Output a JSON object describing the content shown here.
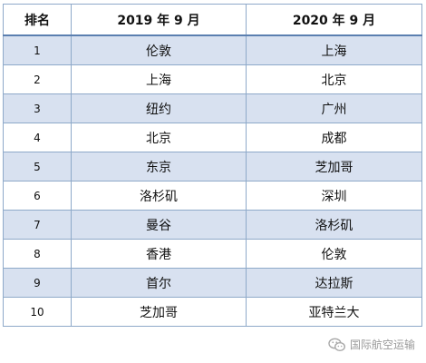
{
  "table": {
    "headers": [
      "排名",
      "2019 年 9 月",
      "2020 年 9 月"
    ],
    "rows": [
      {
        "rank": "1",
        "y2019": "伦敦",
        "y2020": "上海"
      },
      {
        "rank": "2",
        "y2019": "上海",
        "y2020": "北京"
      },
      {
        "rank": "3",
        "y2019": "纽约",
        "y2020": "广州"
      },
      {
        "rank": "4",
        "y2019": "北京",
        "y2020": "成都"
      },
      {
        "rank": "5",
        "y2019": "东京",
        "y2020": "芝加哥"
      },
      {
        "rank": "6",
        "y2019": "洛杉矶",
        "y2020": "深圳"
      },
      {
        "rank": "7",
        "y2019": "曼谷",
        "y2020": "洛杉矶"
      },
      {
        "rank": "8",
        "y2019": "香港",
        "y2020": "伦敦"
      },
      {
        "rank": "9",
        "y2019": "首尔",
        "y2020": "达拉斯"
      },
      {
        "rank": "10",
        "y2019": "芝加哥",
        "y2020": "亚特兰大"
      }
    ]
  },
  "watermark": {
    "text": "国际航空运输",
    "icon": "wechat-icon"
  },
  "colors": {
    "row_shade": "#d8e1f0",
    "border": "#8ea9c9"
  }
}
